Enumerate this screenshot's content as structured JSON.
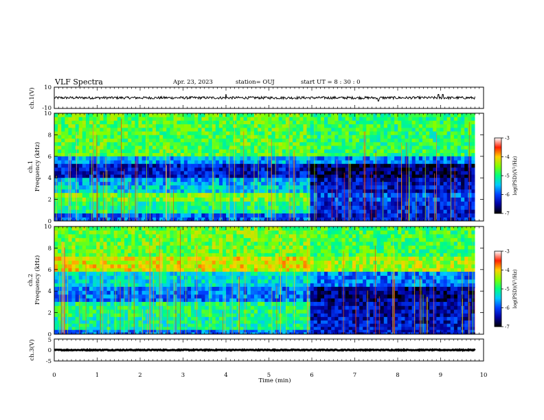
{
  "header": {
    "title": "VLF Spectra",
    "date": "Apr. 23, 2023",
    "station": "station= OUJ",
    "start": "start  UT =   8 : 30 : 0"
  },
  "chart_data": [
    {
      "type": "line",
      "panel": "ch1",
      "ylabel": "ch.1(V)",
      "ylim": [
        -10,
        10
      ],
      "yticks": [
        "10",
        "-10"
      ],
      "xlim": [
        0,
        10
      ],
      "baseline": 0,
      "noise_amplitude": 1.2,
      "spikes": [
        {
          "t": 4.0,
          "v": 3.5
        },
        {
          "t": 7.55,
          "v": -3.0
        },
        {
          "t": 8.95,
          "v": 3.2
        },
        {
          "t": 9.05,
          "v": 3.2
        }
      ]
    },
    {
      "type": "heatmap",
      "panel": "ch1-spectrogram",
      "ylabel_top": "ch.1",
      "ylabel": "Frequency (kHz)",
      "ylim": [
        0,
        10
      ],
      "yticks": [
        "0",
        "2",
        "4",
        "6",
        "8",
        "10"
      ],
      "xlim": [
        0,
        10
      ],
      "colorbar": {
        "label": "log(PSD)(V²/Hz)",
        "range": [
          -7,
          -3
        ],
        "ticks": [
          "-3",
          "-4",
          "-5",
          "-6",
          "-7"
        ],
        "colors": [
          "#000000",
          "#0000a0",
          "#0040ff",
          "#00c8ff",
          "#00ff80",
          "#80ff00",
          "#ffd000",
          "#ff2000",
          "#ffffff"
        ]
      },
      "regime_change_min": 5.9,
      "bands": [
        {
          "f0": 6.0,
          "f1": 10.0,
          "value": -4.7,
          "after": -4.9
        },
        {
          "f0": 5.3,
          "f1": 6.0,
          "value": -5.6,
          "after": -5.8
        },
        {
          "f0": 4.0,
          "f1": 5.3,
          "value": -6.3,
          "after": -6.7
        },
        {
          "f0": 3.3,
          "f1": 4.0,
          "value": -5.6,
          "after": -6.4
        },
        {
          "f0": 2.6,
          "f1": 3.3,
          "value": -5.4,
          "after": -6.3
        },
        {
          "f0": 1.8,
          "f1": 2.6,
          "value": -4.6,
          "after": -6.0
        },
        {
          "f0": 0.7,
          "f1": 1.8,
          "value": -5.0,
          "after": -6.2
        },
        {
          "f0": 0.0,
          "f1": 0.7,
          "value": -5.9,
          "after": -6.3
        }
      ]
    },
    {
      "type": "heatmap",
      "panel": "ch2-spectrogram",
      "ylabel_top": "ch.2",
      "ylabel": "Frequency (kHz)",
      "ylim": [
        0,
        10
      ],
      "yticks": [
        "0",
        "2",
        "4",
        "6",
        "8",
        "10"
      ],
      "xlim": [
        0,
        10
      ],
      "colorbar": {
        "label": "log(PSD)(V²/Hz)",
        "range": [
          -7,
          -3
        ],
        "ticks": [
          "-3",
          "-4",
          "-5",
          "-6",
          "-7"
        ],
        "colors": [
          "#000000",
          "#0000a0",
          "#0040ff",
          "#00c8ff",
          "#00ff80",
          "#80ff00",
          "#ffd000",
          "#ff2000",
          "#ffffff"
        ]
      },
      "regime_change_min": 5.9,
      "bands": [
        {
          "f0": 7.2,
          "f1": 10.0,
          "value": -4.6,
          "after": -4.8
        },
        {
          "f0": 5.8,
          "f1": 7.2,
          "value": -4.2,
          "after": -4.4
        },
        {
          "f0": 4.4,
          "f1": 5.8,
          "value": -5.3,
          "after": -5.8
        },
        {
          "f0": 3.0,
          "f1": 4.4,
          "value": -5.8,
          "after": -6.6
        },
        {
          "f0": 1.6,
          "f1": 3.0,
          "value": -5.0,
          "after": -6.4
        },
        {
          "f0": 0.4,
          "f1": 1.6,
          "value": -5.1,
          "after": -6.3
        },
        {
          "f0": 0.0,
          "f1": 0.4,
          "value": -5.8,
          "after": -6.3
        }
      ]
    },
    {
      "type": "line",
      "panel": "ch3",
      "ylabel": "ch.3(V)",
      "ylim": [
        -5,
        5
      ],
      "yticks": [
        "5",
        "0",
        "-5"
      ],
      "xlim": [
        0,
        10
      ],
      "baseline": 0,
      "noise_amplitude": 0.2,
      "xlabel": "Time (min)",
      "xticks": [
        "0",
        "1",
        "2",
        "3",
        "4",
        "5",
        "6",
        "7",
        "8",
        "9",
        "10"
      ]
    }
  ]
}
